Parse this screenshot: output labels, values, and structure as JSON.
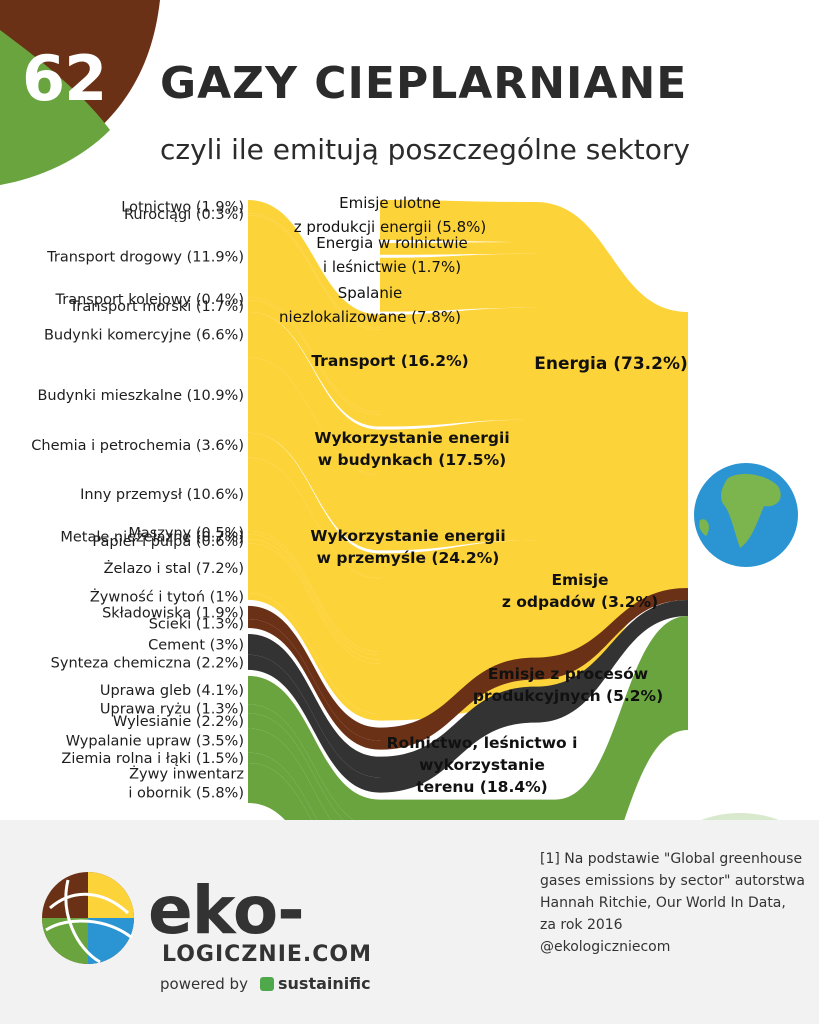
{
  "header": {
    "number": "62",
    "title": "GAZY CIEPLARNIANE",
    "subtitle": "czyli ile emitują poszczególne sektory"
  },
  "colors": {
    "energy": "#fdd33a",
    "waste": "#6b3116",
    "industry": "#333333",
    "agriculture": "#6aa43f",
    "globe_ocean": "#2b95d3",
    "globe_land": "#7cb54d"
  },
  "chart_data": {
    "type": "sankey",
    "title": "GAZY CIEPLARNIANE",
    "unit": "% of global greenhouse gas emissions",
    "sources": [
      {
        "label": "Lotnictwo (1.9%)",
        "value": 1.9,
        "target": "Transport (16.2%)",
        "group": "energy"
      },
      {
        "label": "Rurociągi (0.3%)",
        "value": 0.3,
        "target": "Transport (16.2%)",
        "group": "energy"
      },
      {
        "label": "Transport drogowy (11.9%)",
        "value": 11.9,
        "target": "Transport (16.2%)",
        "group": "energy"
      },
      {
        "label": "Transport kolejowy (0.4%)",
        "value": 0.4,
        "target": "Transport (16.2%)",
        "group": "energy"
      },
      {
        "label": "Transport morski (1.7%)",
        "value": 1.7,
        "target": "Transport (16.2%)",
        "group": "energy"
      },
      {
        "label": "Budynki komercyjne (6.6%)",
        "value": 6.6,
        "target": "Wykorzystanie energii w budynkach (17.5%)",
        "group": "energy"
      },
      {
        "label": "Budynki mieszkalne (10.9%)",
        "value": 10.9,
        "target": "Wykorzystanie energii w budynkach (17.5%)",
        "group": "energy"
      },
      {
        "label": "Chemia i petrochemia (3.6%)",
        "value": 3.6,
        "target": "Wykorzystanie energii w przemyśle (24.2%)",
        "group": "energy"
      },
      {
        "label": "Inny przemysł (10.6%)",
        "value": 10.6,
        "target": "Wykorzystanie energii w przemyśle (24.2%)",
        "group": "energy"
      },
      {
        "label": "Maszyny (0.5%)",
        "value": 0.5,
        "target": "Wykorzystanie energii w przemyśle (24.2%)",
        "group": "energy"
      },
      {
        "label": "Metale nieżelazne (0.7%)",
        "value": 0.7,
        "target": "Wykorzystanie energii w przemyśle (24.2%)",
        "group": "energy"
      },
      {
        "label": "Papier i pulpa  (0.6%)",
        "value": 0.6,
        "target": "Wykorzystanie energii w przemyśle (24.2%)",
        "group": "energy"
      },
      {
        "label": "Żelazo i stal (7.2%)",
        "value": 7.2,
        "target": "Wykorzystanie energii w przemyśle (24.2%)",
        "group": "energy"
      },
      {
        "label": "Żywność i tytoń (1%)",
        "value": 1.0,
        "target": "Wykorzystanie energii w przemyśle (24.2%)",
        "group": "energy"
      },
      {
        "label": "Składowiska (1.9%)",
        "value": 1.9,
        "target": "Emisje z odpadów (3.2%)",
        "group": "waste"
      },
      {
        "label": "Ścieki (1.3%)",
        "value": 1.3,
        "target": "Emisje z odpadów (3.2%)",
        "group": "waste"
      },
      {
        "label": "Cement (3%)",
        "value": 3.0,
        "target": "Emisje z procesów produkcyjnych (5.2%)",
        "group": "industry"
      },
      {
        "label": "Synteza chemiczna (2.2%)",
        "value": 2.2,
        "target": "Emisje z procesów produkcyjnych (5.2%)",
        "group": "industry"
      },
      {
        "label": "Uprawa gleb (4.1%)",
        "value": 4.1,
        "target": "Rolnictwo, leśnictwo i wykorzystanie terenu (18.4%)",
        "group": "agriculture"
      },
      {
        "label": "Uprawa ryżu (1.3%)",
        "value": 1.3,
        "target": "Rolnictwo, leśnictwo i wykorzystanie terenu (18.4%)",
        "group": "agriculture"
      },
      {
        "label": "Wylesianie (2.2%)",
        "value": 2.2,
        "target": "Rolnictwo, leśnictwo i wykorzystanie terenu (18.4%)",
        "group": "agriculture"
      },
      {
        "label": "Wypalanie upraw (3.5%)",
        "value": 3.5,
        "target": "Rolnictwo, leśnictwo i wykorzystanie terenu (18.4%)",
        "group": "agriculture"
      },
      {
        "label": "Ziemia rolna i łąki (1.5%)",
        "value": 1.5,
        "target": "Rolnictwo, leśnictwo i wykorzystanie terenu (18.4%)",
        "group": "agriculture"
      },
      {
        "label": "Żywy inwentarz i obornik (5.8%)",
        "label_lines": [
          "Żywy inwentarz",
          "i obornik (5.8%)"
        ],
        "value": 5.8,
        "target": "Rolnictwo, leśnictwo i wykorzystanie terenu (18.4%)",
        "group": "agriculture"
      }
    ],
    "middle_nodes": [
      {
        "label": "Emisje ulotne z produkcji energii (5.8%)",
        "label_lines": [
          "Emisje ulotne",
          "z produkcji energii (5.8%)"
        ],
        "value": 5.8,
        "target": "Energia (73.2%)",
        "group": "energy",
        "bold": false
      },
      {
        "label": "Energia w rolnictwie i leśnictwie (1.7%)",
        "label_lines": [
          "Energia w rolnictwie",
          "i leśnictwie (1.7%)"
        ],
        "value": 1.7,
        "target": "Energia (73.2%)",
        "group": "energy",
        "bold": false
      },
      {
        "label": "Spalanie niezlokalizowane (7.8%)",
        "label_lines": [
          "Spalanie",
          "niezlokalizowane (7.8%)"
        ],
        "value": 7.8,
        "target": "Energia (73.2%)",
        "group": "energy",
        "bold": false
      },
      {
        "label": "Transport (16.2%)",
        "label_lines": [
          "Transport (16.2%)"
        ],
        "value": 16.2,
        "target": "Energia (73.2%)",
        "group": "energy",
        "bold": true
      },
      {
        "label": "Wykorzystanie energii w budynkach (17.5%)",
        "label_lines": [
          "Wykorzystanie energii",
          "w budynkach (17.5%)"
        ],
        "value": 17.5,
        "target": "Energia (73.2%)",
        "group": "energy",
        "bold": true
      },
      {
        "label": "Wykorzystanie energii w przemyśle (24.2%)",
        "label_lines": [
          "Wykorzystanie energii",
          "w przemyśle (24.2%)"
        ],
        "value": 24.2,
        "target": "Energia (73.2%)",
        "group": "energy",
        "bold": true
      },
      {
        "label": "Emisje z odpadów (3.2%)",
        "label_lines": [
          "Emisje",
          "z odpadów (3.2%)"
        ],
        "value": 3.2,
        "group": "waste",
        "bold": true
      },
      {
        "label": "Emisje z procesów produkcyjnych (5.2%)",
        "label_lines": [
          "Emisje z procesów",
          "produkcyjnych (5.2%)"
        ],
        "value": 5.2,
        "group": "industry",
        "bold": true
      },
      {
        "label": "Rolnictwo, leśnictwo i wykorzystanie terenu (18.4%)",
        "label_lines": [
          "Rolnictwo, leśnictwo i",
          "wykorzystanie",
          "terenu (18.4%)"
        ],
        "value": 18.4,
        "group": "agriculture",
        "bold": true
      }
    ],
    "aggregate_nodes": [
      {
        "label": "Energia (73.2%)",
        "value": 73.2,
        "group": "energy"
      }
    ],
    "sink": "globe"
  },
  "source": {
    "lines": [
      "[1] Na podstawie \"Global greenhouse",
      "gases emissions by sector\" autorstwa",
      "Hannah Ritchie, Our World In Data,",
      "za rok 2016",
      "@ekologiczniecom"
    ]
  },
  "branding": {
    "logo_main": "eko-",
    "logo_sub": "LOGICZNIE.COM",
    "powered_by": "powered by",
    "sponsor": "sustainific"
  }
}
